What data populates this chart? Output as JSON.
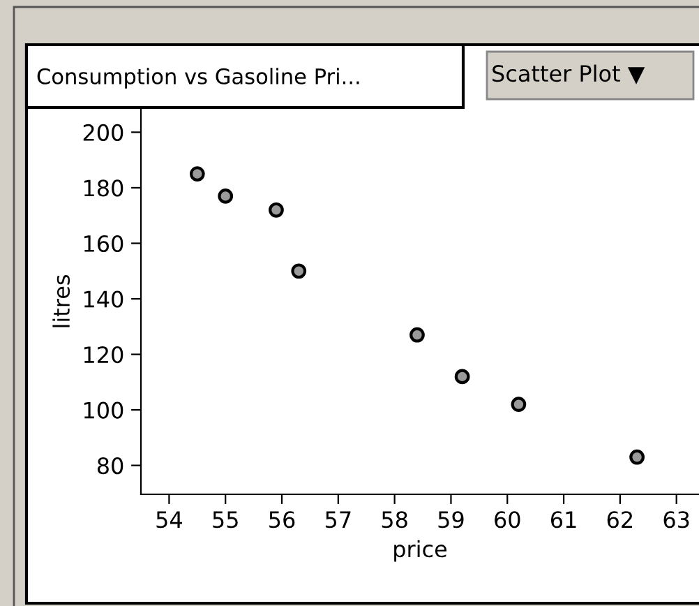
{
  "chart_data": {
    "type": "scatter",
    "title": "Consumption vs Gasoline Pri...",
    "annotations": [
      "Scatter Plot ▼"
    ],
    "xlabel": "price",
    "ylabel": "litres",
    "x": [
      54.5,
      55.0,
      55.9,
      56.3,
      58.4,
      59.2,
      60.2,
      62.3
    ],
    "values": [
      185,
      177,
      172,
      150,
      127,
      112,
      102,
      83
    ],
    "color": "#9a9a9a",
    "marker": "circle",
    "xlim": [
      53.5,
      63.4
    ],
    "xticks": [
      54,
      55,
      56,
      57,
      58,
      59,
      60,
      61,
      62,
      63
    ],
    "ylim": [
      69.6,
      208.4
    ],
    "yticks": [
      80,
      100,
      120,
      140,
      160,
      180,
      200
    ],
    "grid": false,
    "legend": false
  }
}
